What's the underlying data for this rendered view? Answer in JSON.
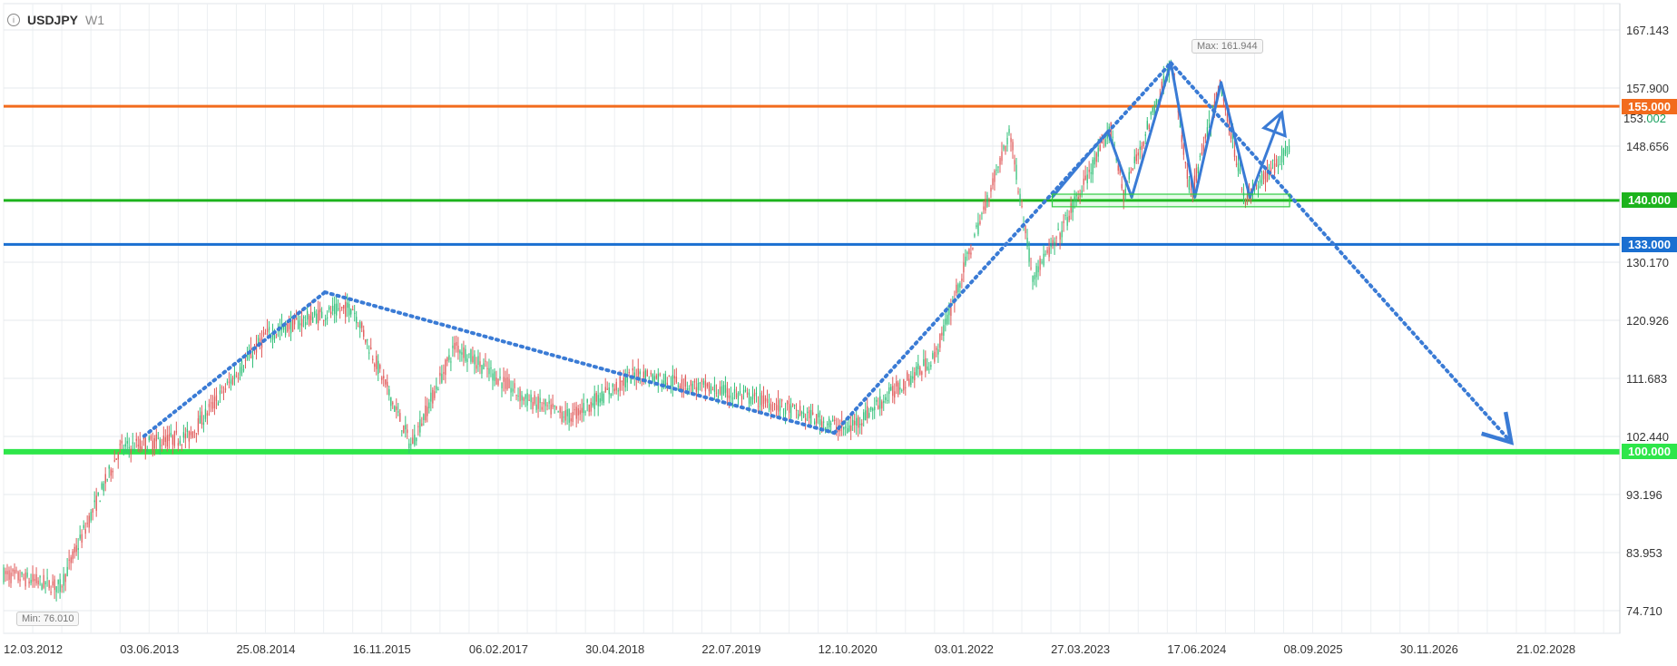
{
  "header": {
    "info_icon": "info-icon",
    "symbol": "USDJPY",
    "timeframe": "W1"
  },
  "annotations": {
    "max_label": "Max: 161.944",
    "min_label": "Min: 76.010"
  },
  "current_price": {
    "base": "153.",
    "highlight": "002"
  },
  "levels": [
    {
      "label": "155.000",
      "value": 155.0,
      "color": "#f26b1d"
    },
    {
      "label": "140.000",
      "value": 140.0,
      "color": "#1db31d"
    },
    {
      "label": "133.000",
      "value": 133.0,
      "color": "#1a6fd1"
    },
    {
      "label": "100.000",
      "value": 100.0,
      "color": "#2ee64a"
    }
  ],
  "chart_data": {
    "type": "candlestick",
    "title": "USDJPY",
    "timeframe": "W1",
    "x_tick_labels": [
      "12.03.2012",
      "03.06.2013",
      "25.08.2014",
      "16.11.2015",
      "06.02.2017",
      "30.04.2018",
      "22.07.2019",
      "12.10.2020",
      "03.01.2022",
      "27.03.2023",
      "17.06.2024",
      "08.09.2025",
      "30.11.2026",
      "21.02.2028"
    ],
    "y_tick_labels": [
      "167.143",
      "157.900",
      "148.656",
      "130.170",
      "120.926",
      "111.683",
      "102.440",
      "93.196",
      "83.953",
      "74.710"
    ],
    "ylim": [
      71,
      170
    ],
    "grid": true,
    "max": 161.944,
    "min": 76.01,
    "last": 153.002,
    "price_path": {
      "dates": [
        "12.03.2012",
        "15.10.2012",
        "03.06.2013",
        "25.02.2014",
        "15.12.2014",
        "15.06.2015",
        "16.11.2015",
        "27.06.2016",
        "15.12.2016",
        "06.09.2017",
        "01.03.2018",
        "15.11.2018",
        "23.03.2020",
        "01.02.2021",
        "03.01.2022",
        "20.10.2022",
        "15.01.2023",
        "10.04.2023",
        "15.11.2023",
        "01.01.2024",
        "01.07.2024",
        "15.09.2024",
        "08.01.2025",
        "15.04.2025",
        "01.10.2025"
      ],
      "values": [
        80.5,
        78.5,
        100.5,
        102.5,
        118.5,
        121.5,
        123.0,
        101.0,
        117.0,
        108.5,
        105.5,
        112.5,
        108.0,
        103.5,
        115.0,
        151.0,
        128.0,
        133.0,
        151.5,
        141.0,
        161.9,
        140.5,
        158.5,
        140.0,
        148.5
      ]
    },
    "overlays": [
      {
        "type": "dotted-line",
        "points": [
          [
            "04.09.2013",
            102.5
          ],
          [
            "01.08.2015",
            125.4
          ]
        ]
      },
      {
        "type": "dotted-line",
        "points": [
          [
            "01.08.2015",
            125.4
          ],
          [
            "13.12.2020",
            103.0
          ]
        ]
      },
      {
        "type": "dotted-line",
        "points": [
          [
            "13.12.2020",
            103.0
          ],
          [
            "01.07.2024",
            161.9
          ]
        ]
      },
      {
        "type": "dotted-arrow",
        "points": [
          [
            "01.07.2024",
            161.9
          ],
          [
            "01.02.2028",
            101.5
          ]
        ]
      },
      {
        "type": "zigzag-line",
        "points": [
          [
            "01.04.2023",
            140.5
          ],
          [
            "01.11.2023",
            151.0
          ],
          [
            "01.02.2024",
            140.5
          ],
          [
            "01.07.2024",
            161.9
          ],
          [
            "01.10.2024",
            140.5
          ],
          [
            "10.01.2025",
            158.8
          ],
          [
            "01.05.2025",
            140.5
          ],
          [
            "01.09.2025",
            154.0
          ]
        ]
      },
      {
        "type": "rectangle",
        "points": [
          [
            "01.04.2023",
            141.0
          ],
          [
            "01.10.2025",
            139.0
          ]
        ]
      }
    ]
  }
}
